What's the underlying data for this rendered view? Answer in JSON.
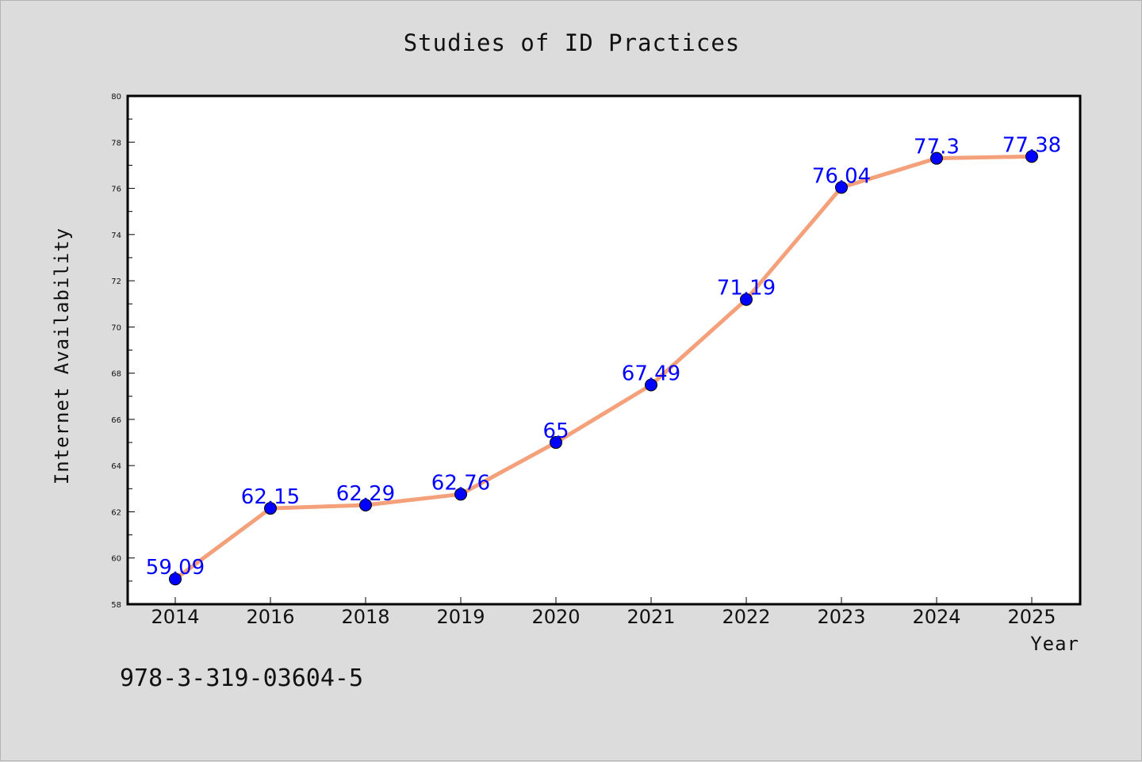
{
  "chart_data": {
    "type": "line",
    "title": "Studies of ID Practices",
    "xlabel": "Year",
    "ylabel": "Internet Availability",
    "categories": [
      "2014",
      "2016",
      "2018",
      "2019",
      "2020",
      "2021",
      "2022",
      "2023",
      "2024",
      "2025"
    ],
    "series": [
      {
        "values": [
          59.09,
          62.15,
          62.29,
          62.76,
          65,
          67.49,
          71.19,
          76.04,
          77.3,
          77.38
        ],
        "labels": [
          "59.09",
          "62.15",
          "62.29",
          "62.76",
          "65",
          "67.49",
          "71.19",
          "76.04",
          "77.3",
          "77.38"
        ],
        "line_color": "#f4a07a",
        "marker_color": "#0000ff"
      }
    ],
    "ylim": [
      58,
      80
    ],
    "y_ticks": [
      "58",
      "60",
      "62",
      "64",
      "66",
      "68",
      "70",
      "72",
      "74",
      "76",
      "78",
      "80"
    ],
    "grid": false,
    "legend": "none"
  },
  "footer": {
    "isbn": "978-3-319-03604-5"
  },
  "colors": {
    "background": "#dcdcdc",
    "plot_background": "#ffffff",
    "data_label": "#0000ff"
  }
}
